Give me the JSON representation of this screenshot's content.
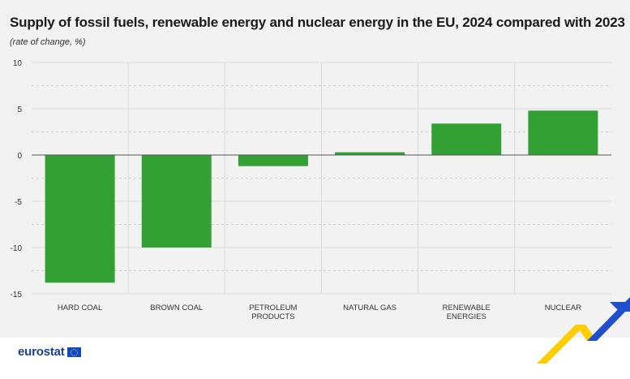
{
  "title": "Supply of fossil fuels, renewable energy and nuclear energy in the EU, 2024 compared with 2023",
  "subtitle": "(rate of change, %)",
  "brand": "eurostat",
  "colors": {
    "bar": "#33a033",
    "accent_yellow": "#ffcc00",
    "accent_blue": "#1d4fcf",
    "background": "#f2f2f2"
  },
  "chart_data": {
    "type": "bar",
    "categories": [
      [
        "HARD COAL"
      ],
      [
        "BROWN COAL"
      ],
      [
        "PETROLEUM",
        "PRODUCTS"
      ],
      [
        "NATURAL GAS"
      ],
      [
        "RENEWABLE",
        "ENERGIES"
      ],
      [
        "NUCLEAR"
      ]
    ],
    "values": [
      -13.8,
      -10.0,
      -1.2,
      0.3,
      3.4,
      4.8
    ],
    "ylim": [
      -15,
      10
    ],
    "yticks": [
      10,
      5,
      0,
      -5,
      -10,
      -15
    ],
    "grid": true,
    "legend": "none"
  }
}
